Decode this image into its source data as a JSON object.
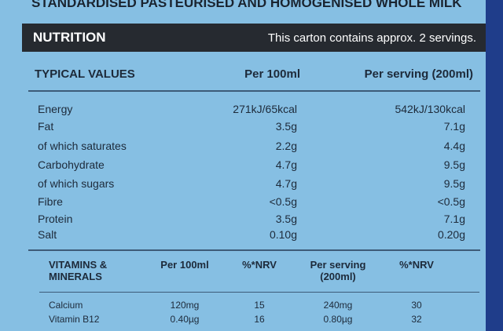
{
  "top_text": "STANDARDISED PASTEURISED AND HOMOGENISED WHOLE MILK",
  "banner": {
    "title": "NUTRITION",
    "note": "This carton contains approx. 2 servings."
  },
  "nutrition": {
    "headers": [
      "TYPICAL VALUES",
      "Per 100ml",
      "Per serving (200ml)"
    ],
    "rows": [
      [
        "Energy",
        "271kJ/65kcal",
        "542kJ/130kcal"
      ],
      [
        "Fat",
        "3.5g",
        "7.1g"
      ],
      [
        "of which saturates",
        "2.2g",
        "4.4g"
      ],
      [
        "Carbohydrate",
        "4.7g",
        "9.5g"
      ],
      [
        "of which sugars",
        "4.7g",
        "9.5g"
      ],
      [
        "Fibre",
        "<0.5g",
        "<0.5g"
      ],
      [
        "Protein",
        "3.5g",
        "7.1g"
      ],
      [
        "Salt",
        "0.10g",
        "0.20g"
      ]
    ]
  },
  "vitamins": {
    "headers": [
      "VITAMINS & MINERALS",
      "Per 100ml",
      "%*NRV",
      "Per serving (200ml)",
      "%*NRV"
    ],
    "rows": [
      [
        "Calcium",
        "120mg",
        "15",
        "240mg",
        "30"
      ],
      [
        "Vitamin B12",
        "0.40µg",
        "16",
        "0.80µg",
        "32"
      ]
    ]
  }
}
